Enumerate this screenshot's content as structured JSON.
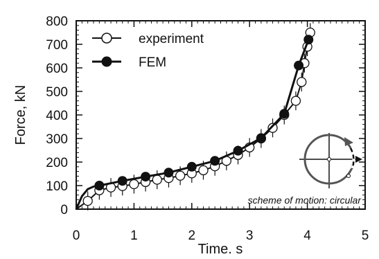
{
  "chart_data": {
    "type": "line",
    "xlabel": "Time. s",
    "ylabel": "Force, kN",
    "xlim": [
      0,
      5
    ],
    "ylim": [
      0,
      800
    ],
    "x_ticks": [
      "0",
      "1",
      "2",
      "3",
      "4",
      "5"
    ],
    "y_ticks": [
      "0",
      "100",
      "200",
      "300",
      "400",
      "500",
      "600",
      "700",
      "800"
    ],
    "grid": false,
    "legend_position": "top-left",
    "annotation": "scheme of motion: circular",
    "series": [
      {
        "name": "experiment",
        "marker": "open-circle",
        "color": "#111111",
        "x": [
          0.2,
          0.4,
          0.6,
          0.8,
          1.0,
          1.2,
          1.4,
          1.6,
          1.8,
          2.0,
          2.2,
          2.4,
          2.6,
          2.8,
          3.0,
          3.2,
          3.4,
          3.6,
          3.8,
          3.9,
          3.95,
          4.0,
          4.05
        ],
        "y": [
          35,
          80,
          92,
          98,
          106,
          115,
          125,
          132,
          142,
          152,
          165,
          182,
          205,
          230,
          262,
          300,
          345,
          400,
          460,
          540,
          620,
          690,
          750
        ],
        "error": [
          40,
          40,
          40,
          40,
          40,
          40,
          40,
          40,
          40,
          40,
          40,
          40,
          40,
          40,
          40,
          40,
          40,
          40,
          40,
          40,
          40,
          40,
          40
        ]
      },
      {
        "name": "FEM",
        "marker": "filled-circle",
        "color": "#111111",
        "x": [
          0.4,
          0.8,
          1.2,
          1.6,
          2.0,
          2.4,
          2.8,
          3.2,
          3.6,
          3.85,
          4.02
        ],
        "y": [
          100,
          120,
          138,
          155,
          180,
          205,
          248,
          302,
          405,
          610,
          720
        ]
      }
    ]
  },
  "colors": {
    "line": "#111111",
    "scheme_arc": "#555555"
  },
  "icons": {
    "scheme": "circular-motion-scheme-icon"
  }
}
